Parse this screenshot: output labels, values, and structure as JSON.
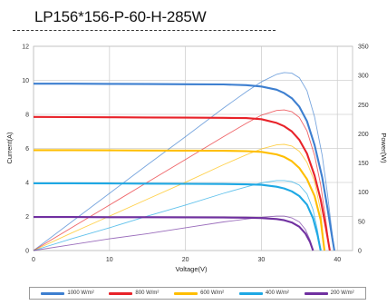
{
  "chart_data": {
    "type": "line",
    "title": "LP156*156-P-60-H-285W",
    "xlabel": "Voltage(V)",
    "ylabel_left": "Current(A)",
    "ylabel_right": "Power(W)",
    "xlim": [
      0,
      42
    ],
    "ylim_left": [
      0,
      12
    ],
    "ylim_right": [
      0,
      350
    ],
    "x_ticks": [
      0,
      10,
      20,
      30,
      40
    ],
    "y_ticks_left": [
      0,
      2,
      4,
      6,
      8,
      10,
      12
    ],
    "y_ticks_right": [
      0,
      50,
      100,
      150,
      200,
      250,
      300,
      350
    ],
    "grid": true,
    "legend_position": "bottom",
    "series": [
      {
        "name": "1000 W/m²",
        "color": "#3d7fd0",
        "current": [
          [
            0,
            9.8
          ],
          [
            5,
            9.8
          ],
          [
            10,
            9.79
          ],
          [
            15,
            9.78
          ],
          [
            20,
            9.77
          ],
          [
            25,
            9.76
          ],
          [
            28,
            9.72
          ],
          [
            30,
            9.64
          ],
          [
            32,
            9.45
          ],
          [
            33,
            9.25
          ],
          [
            34,
            8.95
          ],
          [
            35,
            8.45
          ],
          [
            36,
            7.6
          ],
          [
            37,
            6.2
          ],
          [
            38,
            4.3
          ],
          [
            38.7,
            2.5
          ],
          [
            39.3,
            0.8
          ],
          [
            39.6,
            0
          ]
        ],
        "power": [
          [
            0,
            0
          ],
          [
            5,
            49
          ],
          [
            10,
            98
          ],
          [
            15,
            147
          ],
          [
            20,
            195
          ],
          [
            25,
            244
          ],
          [
            28,
            272
          ],
          [
            30,
            289
          ],
          [
            32,
            302
          ],
          [
            33,
            305
          ],
          [
            34,
            304
          ],
          [
            35,
            296
          ],
          [
            36,
            274
          ],
          [
            37,
            229
          ],
          [
            38,
            163
          ],
          [
            38.7,
            97
          ],
          [
            39.3,
            31
          ],
          [
            39.6,
            0
          ]
        ]
      },
      {
        "name": "800 W/m²",
        "color": "#e8232a",
        "current": [
          [
            0,
            7.85
          ],
          [
            5,
            7.84
          ],
          [
            10,
            7.83
          ],
          [
            15,
            7.82
          ],
          [
            20,
            7.81
          ],
          [
            25,
            7.8
          ],
          [
            28,
            7.78
          ],
          [
            30,
            7.72
          ],
          [
            32,
            7.5
          ],
          [
            33,
            7.3
          ],
          [
            34,
            7.0
          ],
          [
            35,
            6.5
          ],
          [
            36,
            5.7
          ],
          [
            37,
            4.4
          ],
          [
            37.8,
            3.0
          ],
          [
            38.5,
            1.3
          ],
          [
            39.0,
            0
          ]
        ],
        "power": [
          [
            0,
            0
          ],
          [
            5,
            39
          ],
          [
            10,
            78
          ],
          [
            15,
            117
          ],
          [
            20,
            156
          ],
          [
            25,
            195
          ],
          [
            28,
            218
          ],
          [
            30,
            232
          ],
          [
            32,
            240
          ],
          [
            33,
            241
          ],
          [
            34,
            238
          ],
          [
            35,
            228
          ],
          [
            36,
            205
          ],
          [
            37,
            163
          ],
          [
            37.8,
            113
          ],
          [
            38.5,
            50
          ],
          [
            39.0,
            0
          ]
        ]
      },
      {
        "name": "600 W/m²",
        "color": "#ffbe00",
        "current": [
          [
            0,
            5.9
          ],
          [
            5,
            5.9
          ],
          [
            10,
            5.89
          ],
          [
            15,
            5.88
          ],
          [
            20,
            5.87
          ],
          [
            25,
            5.86
          ],
          [
            28,
            5.84
          ],
          [
            30,
            5.8
          ],
          [
            32,
            5.65
          ],
          [
            33,
            5.5
          ],
          [
            34,
            5.25
          ],
          [
            35,
            4.85
          ],
          [
            36,
            4.2
          ],
          [
            37,
            3.2
          ],
          [
            37.8,
            1.8
          ],
          [
            38.3,
            0
          ]
        ],
        "power": [
          [
            0,
            0
          ],
          [
            5,
            30
          ],
          [
            10,
            59
          ],
          [
            15,
            88
          ],
          [
            20,
            117
          ],
          [
            25,
            147
          ],
          [
            28,
            164
          ],
          [
            30,
            174
          ],
          [
            32,
            181
          ],
          [
            33,
            182
          ],
          [
            34,
            179
          ],
          [
            35,
            170
          ],
          [
            36,
            151
          ],
          [
            37,
            118
          ],
          [
            37.8,
            68
          ],
          [
            38.3,
            0
          ]
        ]
      },
      {
        "name": "400 W/m²",
        "color": "#1ea8e4",
        "current": [
          [
            0,
            3.95
          ],
          [
            5,
            3.95
          ],
          [
            10,
            3.94
          ],
          [
            15,
            3.93
          ],
          [
            20,
            3.92
          ],
          [
            25,
            3.91
          ],
          [
            28,
            3.89
          ],
          [
            30,
            3.86
          ],
          [
            32,
            3.75
          ],
          [
            33,
            3.65
          ],
          [
            34,
            3.48
          ],
          [
            35,
            3.2
          ],
          [
            36,
            2.7
          ],
          [
            36.8,
            1.9
          ],
          [
            37.4,
            0.9
          ],
          [
            37.8,
            0
          ]
        ],
        "power": [
          [
            0,
            0
          ],
          [
            5,
            20
          ],
          [
            10,
            39
          ],
          [
            15,
            59
          ],
          [
            20,
            78
          ],
          [
            25,
            98
          ],
          [
            28,
            109
          ],
          [
            30,
            116
          ],
          [
            32,
            120
          ],
          [
            33,
            120
          ],
          [
            34,
            118
          ],
          [
            35,
            112
          ],
          [
            36,
            97
          ],
          [
            36.8,
            70
          ],
          [
            37.4,
            34
          ],
          [
            37.8,
            0
          ]
        ]
      },
      {
        "name": "200 W/m²",
        "color": "#7030a0",
        "current": [
          [
            0,
            1.97
          ],
          [
            5,
            1.97
          ],
          [
            10,
            1.96
          ],
          [
            15,
            1.96
          ],
          [
            20,
            1.95
          ],
          [
            25,
            1.94
          ],
          [
            28,
            1.93
          ],
          [
            30,
            1.91
          ],
          [
            32,
            1.85
          ],
          [
            33,
            1.78
          ],
          [
            34,
            1.65
          ],
          [
            35,
            1.4
          ],
          [
            35.8,
            1.0
          ],
          [
            36.4,
            0.5
          ],
          [
            36.8,
            0
          ]
        ],
        "power": [
          [
            0,
            0
          ],
          [
            5,
            10
          ],
          [
            10,
            20
          ],
          [
            15,
            29
          ],
          [
            20,
            39
          ],
          [
            25,
            49
          ],
          [
            28,
            54
          ],
          [
            30,
            57
          ],
          [
            32,
            59
          ],
          [
            33,
            59
          ],
          [
            34,
            56
          ],
          [
            35,
            49
          ],
          [
            35.8,
            36
          ],
          [
            36.4,
            18
          ],
          [
            36.8,
            0
          ]
        ]
      }
    ]
  }
}
